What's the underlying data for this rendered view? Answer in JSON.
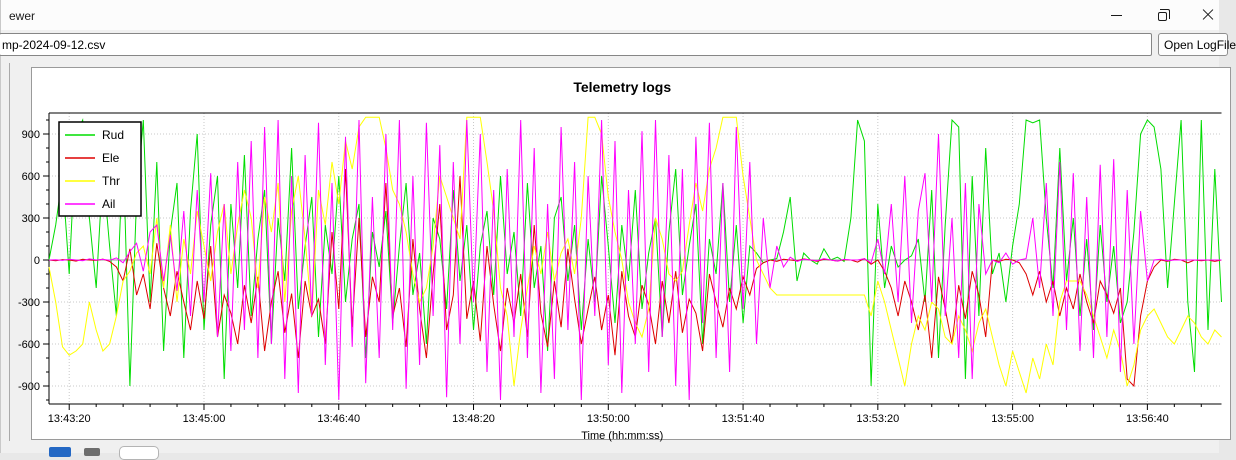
{
  "window": {
    "title": "ewer",
    "controls": {
      "minimize": "minimize",
      "maximize": "restore",
      "close": "close"
    }
  },
  "toolbar": {
    "file_path": "mp-2024-09-12.csv",
    "open_button_label": "Open LogFile"
  },
  "chart_data": {
    "type": "line",
    "title": "Telemetry logs",
    "xlabel": "Time (hh:mm:ss)",
    "ylabel": "",
    "grid": "dotted",
    "legend_position": "upper-left",
    "ylim": [
      -1030,
      1050
    ],
    "y_ticks": [
      -900,
      -600,
      -300,
      0,
      300,
      600,
      900
    ],
    "y_minor_step": 100,
    "t_domain": [
      0,
      870
    ],
    "x_tick_t": [
      15,
      115,
      215,
      315,
      415,
      515,
      615,
      715,
      815
    ],
    "x_tick_labels": [
      "13:43:20",
      "13:45:00",
      "13:46:40",
      "13:48:20",
      "13:50:00",
      "13:51:40",
      "13:53:20",
      "13:55:00",
      "13:56:40"
    ],
    "x_minor_step": 20,
    "series": [
      {
        "name": "Rud",
        "color": "#00dd00",
        "t0": 0,
        "t_step": 5,
        "values": [
          0,
          250,
          600,
          -100,
          900,
          1000,
          300,
          -200,
          650,
          100,
          -400,
          800,
          -900,
          450,
          1000,
          -300,
          700,
          -650,
          200,
          550,
          -700,
          350,
          900,
          -500,
          250,
          600,
          -850,
          400,
          -200,
          750,
          -400,
          150,
          500,
          -600,
          300,
          -150,
          800,
          -350,
          100,
          450,
          -550,
          250,
          -100,
          600,
          -300,
          150,
          400,
          -700,
          200,
          -50,
          350,
          -450,
          100,
          550,
          -250,
          50,
          -600,
          300,
          150,
          -350,
          500,
          -150,
          250,
          -500,
          100,
          350,
          -250,
          600,
          -100,
          200,
          -400,
          550,
          -200,
          100,
          -650,
          300,
          450,
          -150,
          250,
          -500,
          150,
          -300,
          600,
          100,
          -450,
          250,
          -150,
          500,
          -350,
          50,
          300,
          -550,
          200,
          650,
          -250,
          100,
          400,
          -600,
          150,
          -100,
          550,
          -300,
          250,
          -450,
          100,
          50,
          -20,
          0,
          10,
          200,
          450,
          -150,
          50,
          0,
          -30,
          80,
          0,
          20,
          -10,
          300,
          1000,
          850,
          -900,
          400,
          -200,
          100,
          -50,
          0,
          30,
          150,
          -300,
          500,
          -700,
          250,
          1000,
          950,
          -850,
          600,
          -400,
          800,
          -100,
          50,
          -300,
          100,
          400,
          1000,
          980,
          1000,
          300,
          -200,
          800,
          -150,
          300,
          -400,
          150,
          -500,
          250,
          -300,
          100,
          -450,
          -300,
          200,
          900,
          1000,
          950,
          650,
          -200,
          400,
          1000,
          -300,
          -800,
          1000,
          -500,
          650,
          -300
        ]
      },
      {
        "name": "Ele",
        "color": "#dd0000",
        "t0": 0,
        "t_step": 5,
        "values": [
          0,
          -5,
          3,
          0,
          -8,
          5,
          0,
          -3,
          6,
          -10,
          -50,
          -150,
          80,
          -250,
          -100,
          -350,
          120,
          -200,
          -400,
          -80,
          -300,
          -500,
          -150,
          -420,
          100,
          -550,
          -250,
          -380,
          -600,
          -180,
          -450,
          -120,
          -650,
          -300,
          -80,
          -520,
          -240,
          -700,
          -150,
          -400,
          -280,
          -600,
          200,
          -350,
          650,
          -480,
          300,
          -550,
          -120,
          -300,
          550,
          -400,
          -200,
          -620,
          150,
          -350,
          -700,
          -100,
          400,
          -500,
          -250,
          600,
          -420,
          -150,
          -580,
          100,
          -320,
          -650,
          -200,
          -450,
          -100,
          -550,
          250,
          -380,
          -620,
          -150,
          -480,
          80,
          -280,
          -600,
          -350,
          -120,
          -500,
          -250,
          -680,
          -80,
          -400,
          -550,
          -180,
          -320,
          -600,
          -150,
          -450,
          -80,
          -520,
          -280,
          -380,
          -650,
          -100,
          -300,
          -480,
          -200,
          -350,
          -120,
          -250,
          -60,
          -20,
          0,
          -10,
          5,
          0,
          -5,
          8,
          0,
          -10,
          5,
          0,
          -8,
          3,
          0,
          -15,
          10,
          -30,
          0,
          -80,
          -200,
          -400,
          -150,
          -300,
          -500,
          -250,
          -700,
          -120,
          -350,
          -600,
          -180,
          -420,
          -80,
          -250,
          -550,
          0,
          -10,
          5,
          0,
          -20,
          -100,
          -250,
          -80,
          -300,
          -150,
          -400,
          -200,
          -350,
          -100,
          -300,
          -450,
          -150,
          -250,
          -380,
          -200,
          -850,
          -900,
          -400,
          -150,
          -50,
          0,
          -10,
          5,
          0,
          -20,
          0,
          -5,
          0,
          -10,
          0
        ]
      },
      {
        "name": "Thr",
        "color": "#ffff00",
        "t0": 0,
        "t_step": 5,
        "values": [
          -50,
          -300,
          -620,
          -680,
          -650,
          -600,
          -300,
          -500,
          -650,
          -600,
          -400,
          -150,
          -80,
          50,
          100,
          -100,
          300,
          -200,
          250,
          -300,
          150,
          -100,
          350,
          100,
          -150,
          200,
          400,
          -100,
          250,
          500,
          300,
          -200,
          450,
          200,
          550,
          -300,
          350,
          600,
          150,
          -400,
          500,
          250,
          700,
          400,
          850,
          650,
          950,
          1020,
          1020,
          1020,
          800,
          500,
          400,
          200,
          -100,
          -300,
          -200,
          100,
          600,
          450,
          300,
          150,
          1020,
          1020,
          1020,
          700,
          350,
          -200,
          -400,
          -900,
          -500,
          -200,
          100,
          -100,
          200,
          -150,
          50,
          150,
          -100,
          300,
          1020,
          1020,
          900,
          450,
          200,
          0,
          -300,
          -450,
          -550,
          -350,
          300,
          150,
          -100,
          -150,
          -80,
          250,
          550,
          350,
          650,
          800,
          1020,
          1020,
          1020,
          600,
          300,
          0,
          -100,
          -200,
          -250,
          -250,
          -250,
          -250,
          -250,
          -250,
          -250,
          -250,
          -250,
          -250,
          -250,
          -250,
          -250,
          -250,
          -400,
          -150,
          -300,
          -500,
          -700,
          -900,
          -600,
          -400,
          -500,
          -300,
          -350,
          -550,
          -600,
          -400,
          -500,
          -650,
          -450,
          -350,
          -550,
          -750,
          -900,
          -650,
          -800,
          -950,
          -700,
          -850,
          -600,
          -750,
          -300,
          -150,
          -150,
          -150,
          -250,
          -400,
          -550,
          -700,
          -500,
          -650,
          -900,
          -750,
          -500,
          -400,
          -350,
          -450,
          -550,
          -600,
          -500,
          -400,
          -450,
          -550,
          -600,
          -500,
          -550
        ]
      },
      {
        "name": "Ail",
        "color": "#ff00ff",
        "t0": 0,
        "t_step": 5,
        "values": [
          0,
          2,
          -3,
          5,
          0,
          -5,
          8,
          0,
          4,
          -2,
          15,
          -20,
          60,
          120,
          -80,
          200,
          250,
          -150,
          180,
          -220,
          350,
          -400,
          500,
          -300,
          620,
          -550,
          400,
          -650,
          700,
          -500,
          850,
          -700,
          950,
          -600,
          1000,
          -850,
          600,
          -950,
          750,
          -400,
          980,
          -750,
          550,
          -1000,
          880,
          -620,
          1000,
          -880,
          450,
          -700,
          900,
          -500,
          1000,
          -920,
          600,
          -750,
          980,
          -400,
          820,
          -980,
          700,
          -600,
          1000,
          -300,
          900,
          -800,
          500,
          -1000,
          650,
          -550,
          1000,
          -700,
          800,
          -950,
          400,
          -850,
          950,
          -500,
          700,
          -1000,
          600,
          -400,
          1000,
          -750,
          850,
          -950,
          500,
          -600,
          920,
          -800,
          1000,
          -550,
          750,
          -900,
          650,
          -1000,
          880,
          -450,
          980,
          -700,
          550,
          -800,
          950,
          -350,
          700,
          -600,
          300,
          -200,
          100,
          -50,
          20,
          -10,
          5,
          0,
          -5,
          10,
          0,
          -8,
          5,
          0,
          0,
          10,
          -20,
          150,
          -100,
          400,
          -300,
          600,
          -450,
          350,
          620,
          -300,
          900,
          -400,
          300,
          -700,
          550,
          -850,
          400,
          -100,
          0,
          -20,
          50,
          -30,
          0,
          10,
          300,
          -200,
          550,
          -400,
          700,
          -500,
          620,
          -650,
          450,
          -700,
          680,
          -550,
          720,
          -800,
          500,
          -600,
          350,
          -150,
          0,
          5,
          -5,
          0,
          0,
          0,
          0,
          0,
          0,
          0,
          0
        ]
      }
    ]
  }
}
